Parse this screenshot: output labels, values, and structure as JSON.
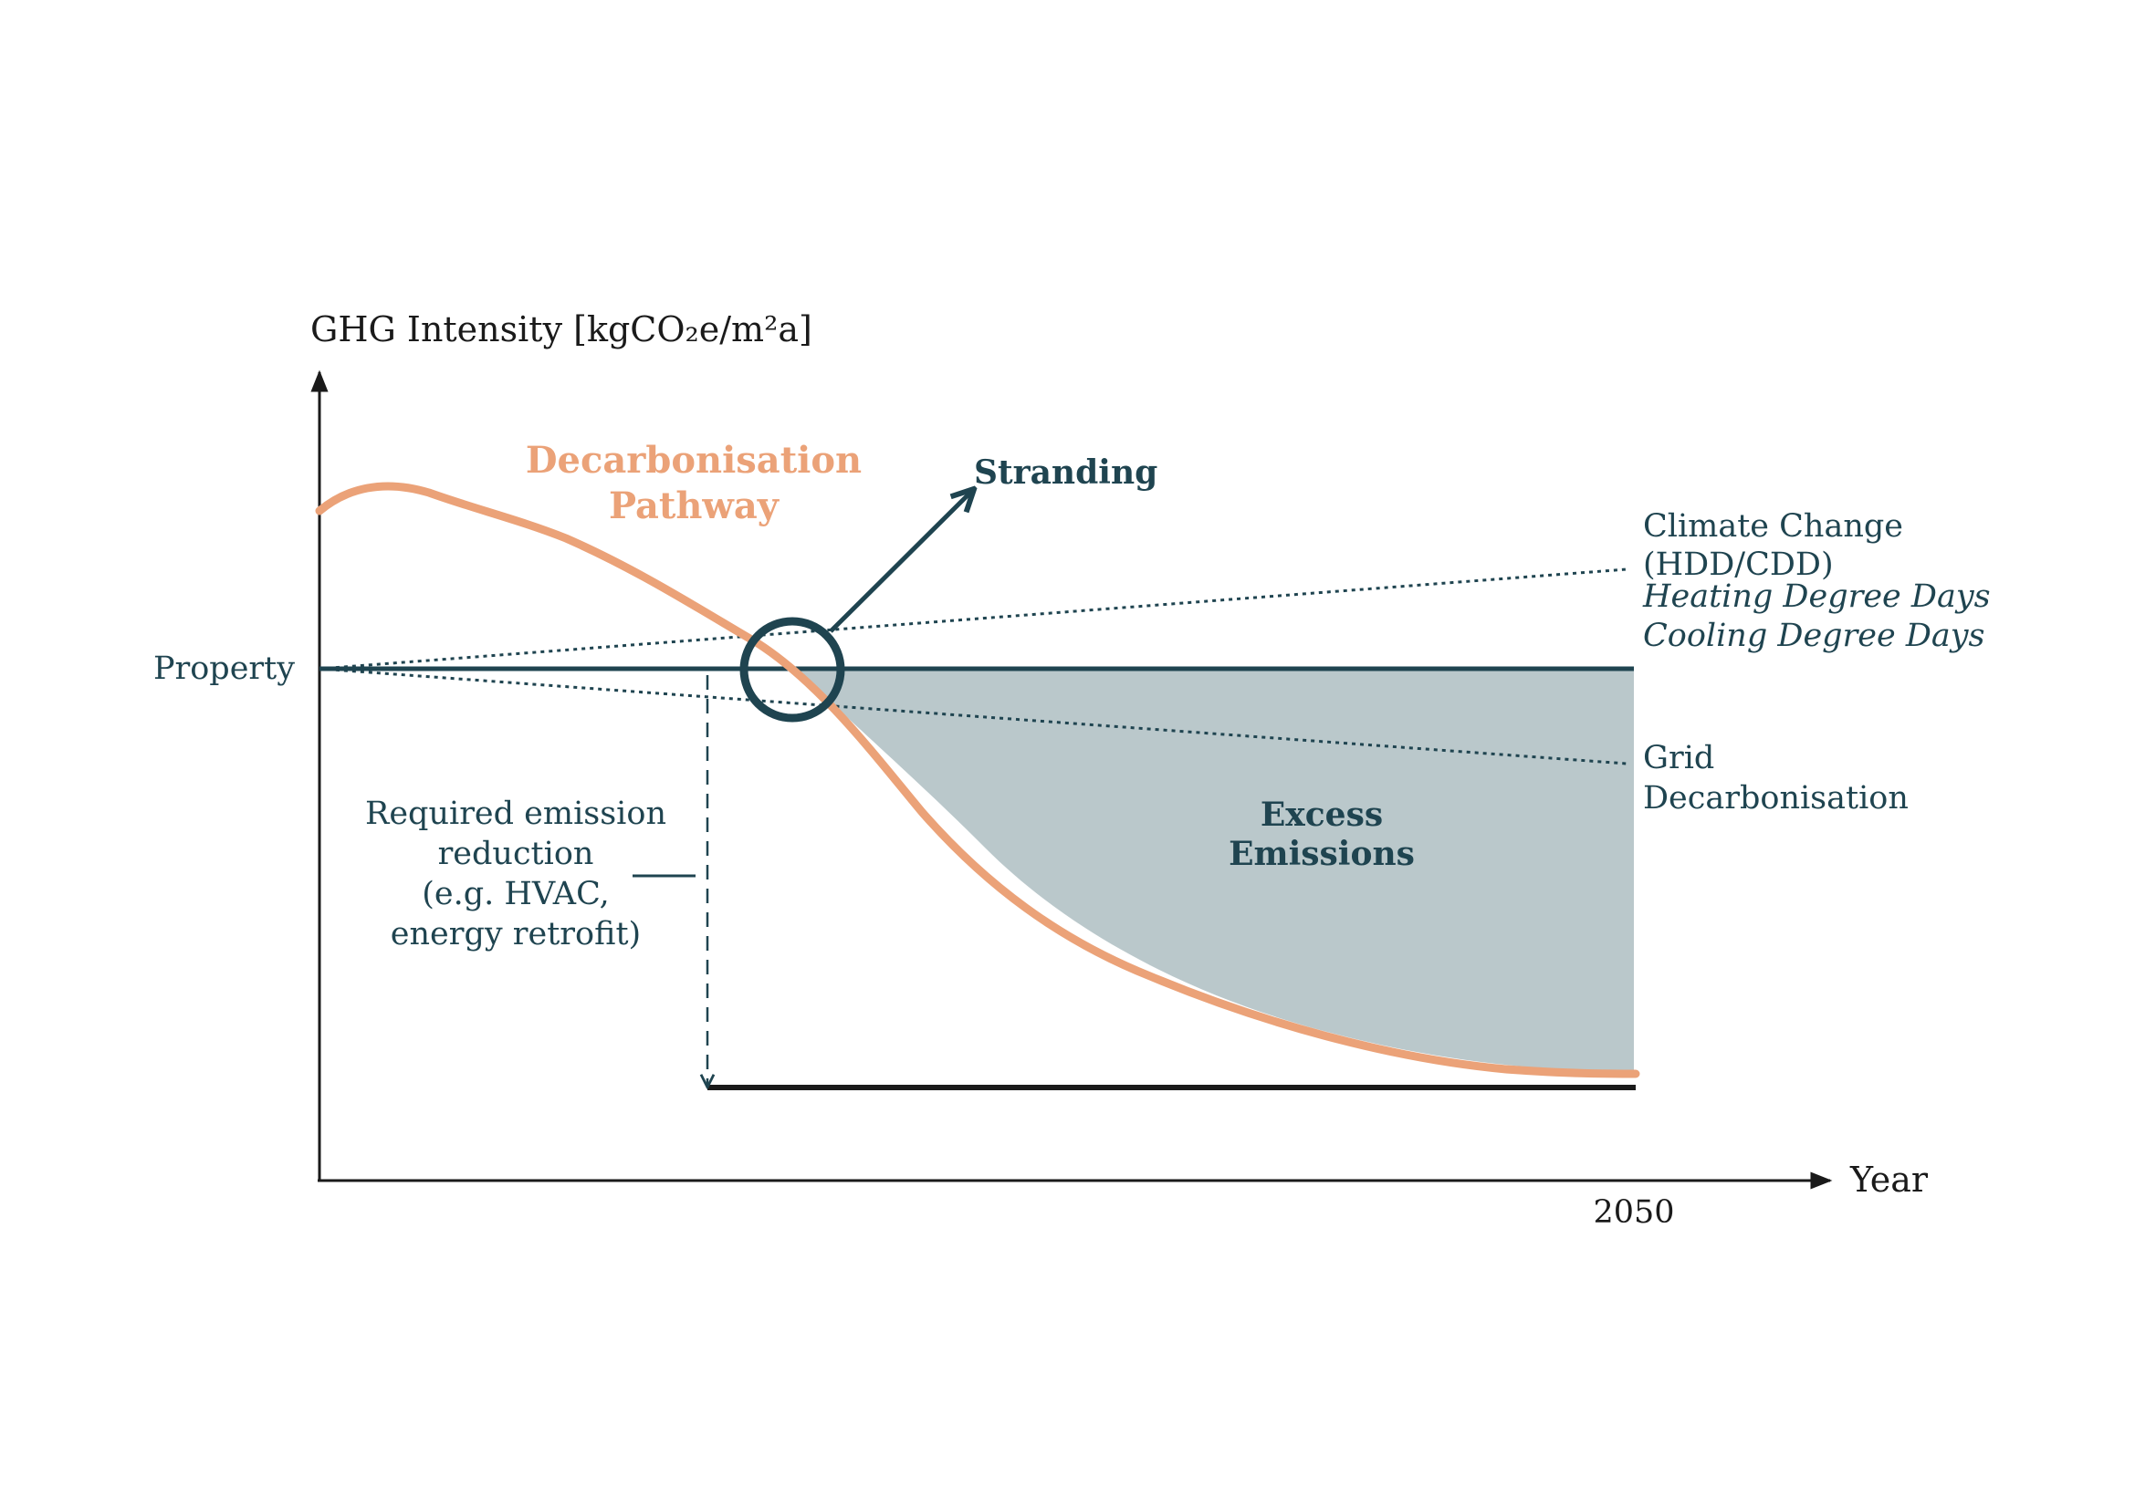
{
  "axes": {
    "y_title": "GHG Intensity [kgCO₂e/m²a]",
    "x_title": "Year",
    "x_tick": "2050",
    "y_tick": "Property"
  },
  "labels": {
    "pathway_line1": "Decarbonisation",
    "pathway_line2": "Pathway",
    "stranding": "Stranding",
    "climate_line1": "Climate Change",
    "climate_line2": "(HDD/CDD)",
    "climate_line3": "Heating Degree Days",
    "climate_line4": "Cooling Degree Days",
    "grid_line1": "Grid",
    "grid_line2": "Decarbonisation",
    "excess_line1": "Excess",
    "excess_line2": "Emissions",
    "required_line1": "Required emission",
    "required_line2": "reduction",
    "required_line3": "(e.g. HVAC,",
    "required_line4": "energy retrofit)"
  },
  "colors": {
    "teal": "#1f4450",
    "orange": "#eba278",
    "fill": "#bac8cb",
    "axis": "#1a1a1a"
  }
}
